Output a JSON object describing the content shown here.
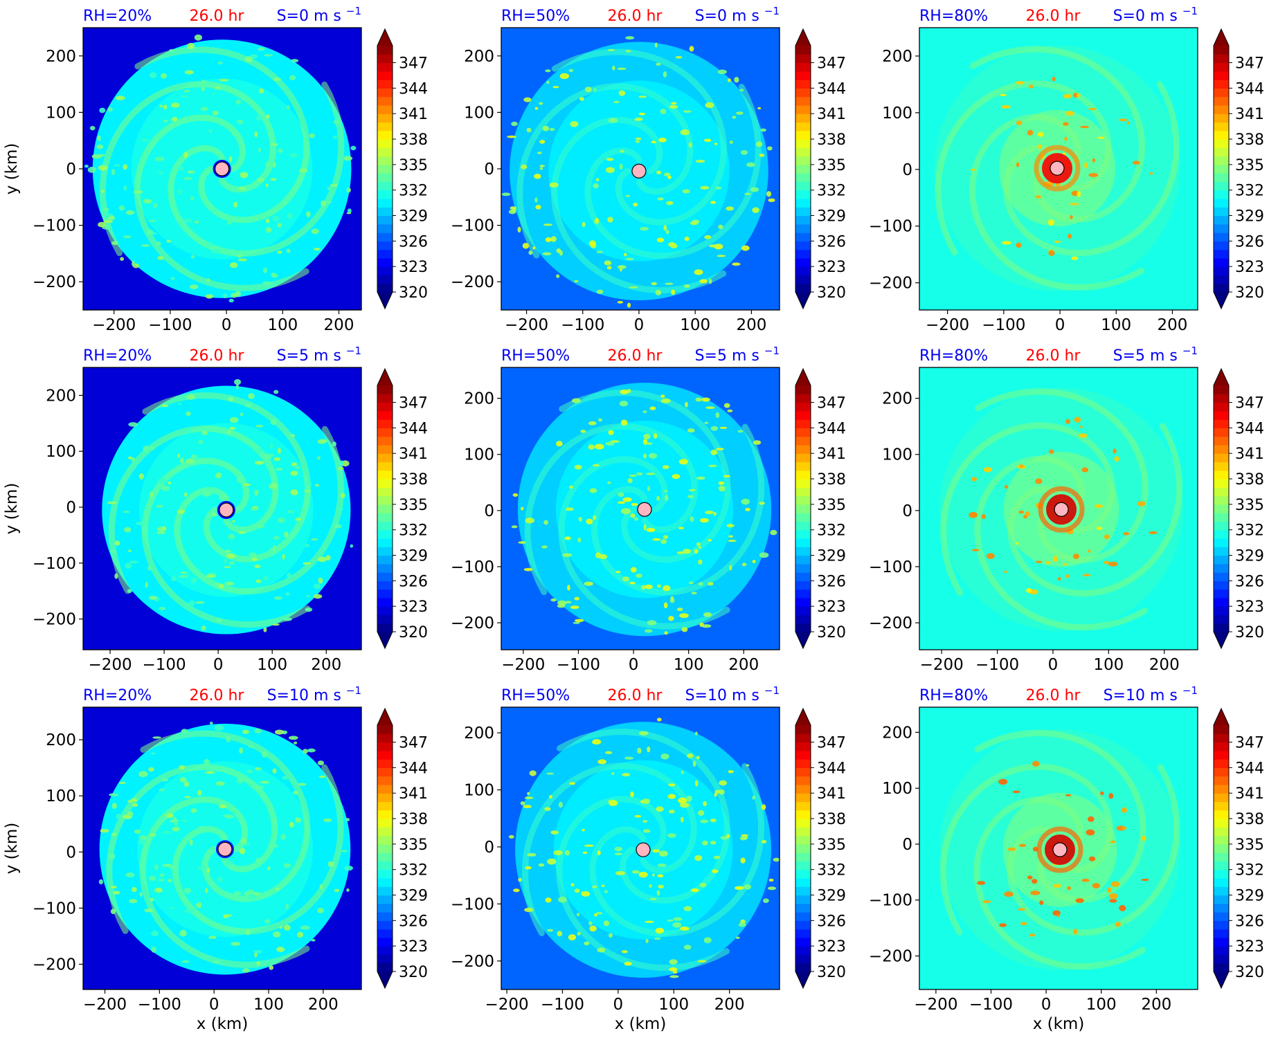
{
  "chart_data": {
    "type": "heatmap",
    "time_label": "26.0 hr",
    "colorbar": {
      "min": 320,
      "max": 349,
      "step": 1,
      "extend": "both",
      "ticks": [
        "320",
        "323",
        "326",
        "329",
        "332",
        "335",
        "338",
        "341",
        "344",
        "347"
      ]
    },
    "xlabel": "x (km)",
    "ylabel": "y (km)",
    "x_ticks": [
      "−200",
      "−100",
      "0",
      "100",
      "200"
    ],
    "y_ticks": [
      "200",
      "100",
      "0",
      "−100",
      "−200"
    ],
    "rows": [
      {
        "shear": "S=0 m s",
        "exp": "−1"
      },
      {
        "shear": "S=5 m s",
        "exp": "−1"
      },
      {
        "shear": "S=10 m s",
        "exp": "−1"
      }
    ],
    "cols": [
      {
        "rh": "RH=20%",
        "background": 322.5
      },
      {
        "rh": "RH=50%",
        "background": 326.5
      },
      {
        "rh": "RH=80%",
        "background": 331.3
      }
    ],
    "panels": [
      {
        "row": 0,
        "col": 0,
        "xlim": [
          -255,
          240
        ],
        "ylim": [
          -250,
          250
        ],
        "center": [
          -8,
          0
        ],
        "core_value": 331,
        "spiral_amp": 3.5,
        "cluster_value": 336,
        "eye_value": 323
      },
      {
        "row": 0,
        "col": 1,
        "xlim": [
          -245,
          250
        ],
        "ylim": [
          -250,
          250
        ],
        "center": [
          0,
          -4
        ],
        "core_value": 330,
        "spiral_amp": 2.5,
        "cluster_value": 338
      },
      {
        "row": 0,
        "col": 2,
        "xlim": [
          -250,
          245
        ],
        "ylim": [
          -248,
          250
        ],
        "center": [
          -5,
          2
        ],
        "core_value": 333,
        "spiral_amp": 1.0,
        "cluster_value": 342,
        "eyewall_value": 345
      },
      {
        "row": 1,
        "col": 0,
        "xlim": [
          -250,
          265
        ],
        "ylim": [
          -255,
          250
        ],
        "center": [
          15,
          -5
        ],
        "core_value": 331,
        "spiral_amp": 3.5,
        "cluster_value": 336,
        "eye_value": 323
      },
      {
        "row": 1,
        "col": 1,
        "xlim": [
          -240,
          265
        ],
        "ylim": [
          -248,
          255
        ],
        "center": [
          20,
          2
        ],
        "core_value": 330,
        "spiral_amp": 2.5,
        "cluster_value": 338
      },
      {
        "row": 1,
        "col": 2,
        "xlim": [
          -240,
          260
        ],
        "ylim": [
          -248,
          255
        ],
        "center": [
          15,
          2
        ],
        "core_value": 333,
        "spiral_amp": 1.0,
        "cluster_value": 342,
        "eyewall_value": 346
      },
      {
        "row": 2,
        "col": 0,
        "xlim": [
          -240,
          270
        ],
        "ylim": [
          -245,
          258
        ],
        "center": [
          20,
          5
        ],
        "core_value": 331,
        "spiral_amp": 3.5,
        "cluster_value": 336,
        "eye_value": 324
      },
      {
        "row": 2,
        "col": 1,
        "xlim": [
          -210,
          290
        ],
        "ylim": [
          -250,
          245
        ],
        "center": [
          45,
          -5
        ],
        "core_value": 330,
        "spiral_amp": 2.5,
        "cluster_value": 338
      },
      {
        "row": 2,
        "col": 2,
        "xlim": [
          -230,
          275
        ],
        "ylim": [
          -260,
          245
        ],
        "center": [
          25,
          -10
        ],
        "core_value": 333,
        "spiral_amp": 1.0,
        "cluster_value": 343,
        "eyewall_value": 346
      }
    ]
  }
}
